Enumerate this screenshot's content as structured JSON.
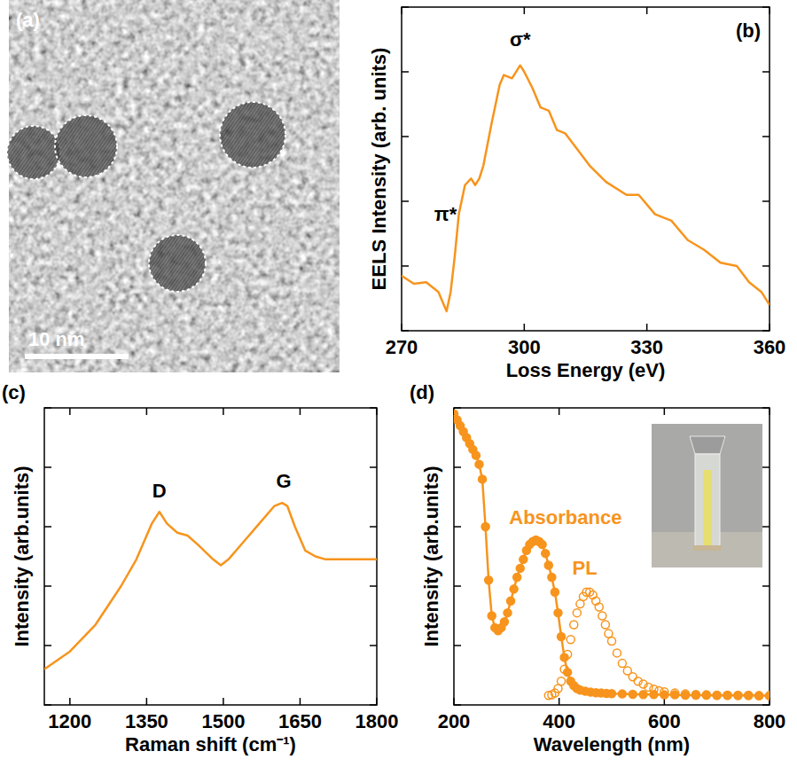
{
  "chart_data": [
    {
      "type": "image",
      "title": "(a)",
      "annotations": [
        {
          "text": "10 nm"
        }
      ]
    },
    {
      "type": "line",
      "title": "(b)",
      "x_label": "Loss Energy (eV)",
      "y_label": "EELS Intensity (arb. units)",
      "x": [
        270,
        273,
        276,
        279,
        281,
        282,
        283,
        284,
        285.5,
        287,
        288,
        289,
        290,
        292,
        294,
        295,
        297,
        299,
        300,
        302,
        304,
        306,
        308,
        310,
        313,
        316,
        320,
        325,
        328,
        332,
        336,
        340,
        344,
        348,
        352,
        355,
        358,
        360
      ],
      "values": [
        17,
        14.5,
        15,
        12,
        6,
        12,
        23,
        36,
        45,
        47,
        45,
        47,
        51,
        64,
        76,
        79,
        78,
        82,
        80,
        75,
        69,
        68,
        62,
        61,
        56,
        51,
        46,
        42,
        42,
        36,
        34,
        28,
        25,
        21,
        20,
        15,
        12,
        8
      ],
      "color": "#f7941d",
      "xlim": [
        270,
        360
      ],
      "xticks": [
        270,
        300,
        330,
        360
      ],
      "ylim": [
        0,
        100
      ],
      "yticks": [
        0,
        20,
        40,
        60,
        80,
        100
      ],
      "tick_labels": "x",
      "annotations": [
        {
          "text": "π*",
          "x": 283.5,
          "y": 34
        },
        {
          "text": "σ*",
          "x": 299,
          "y": 88
        }
      ]
    },
    {
      "type": "line",
      "title": "(c)",
      "x_label": "Raman shift (cm⁻¹)",
      "y_label": "Intensity (arb.units)",
      "x": [
        1150,
        1200,
        1250,
        1300,
        1330,
        1360,
        1375,
        1390,
        1410,
        1430,
        1450,
        1480,
        1495,
        1510,
        1540,
        1570,
        1600,
        1615,
        1625,
        1640,
        1660,
        1680,
        1700,
        1750,
        1800
      ],
      "values": [
        12,
        18,
        27,
        40,
        49,
        61,
        65,
        61,
        58,
        57,
        54,
        49,
        47,
        49,
        55,
        61,
        67,
        68,
        67,
        60,
        52,
        50,
        49,
        49,
        49
      ],
      "color": "#f7941d",
      "xlim": [
        1150,
        1800
      ],
      "xticks": [
        1200,
        1350,
        1500,
        1650,
        1800
      ],
      "ylim": [
        0,
        100
      ],
      "yticks": [
        0,
        20,
        40,
        60,
        80,
        100
      ],
      "tick_labels": "x",
      "annotations": [
        {
          "text": "D",
          "x": 1375,
          "y": 70
        },
        {
          "text": "G",
          "x": 1618,
          "y": 73
        }
      ]
    },
    {
      "type": "line",
      "title": "(d)",
      "x_label": "Wavelength (nm)",
      "y_label": "Intensity (arb.units)",
      "xlim": [
        200,
        800
      ],
      "xticks": [
        200,
        400,
        600,
        800
      ],
      "ylim": [
        0,
        100
      ],
      "yticks": [
        0,
        20,
        40,
        60,
        80,
        100
      ],
      "tick_labels": "x",
      "series": [
        {
          "color": "#f7941d",
          "marker": "circle",
          "line_style": "solid",
          "x": [
            200,
            206,
            212,
            218,
            224,
            230,
            236,
            242,
            248,
            254,
            260,
            266,
            272,
            278,
            284,
            290,
            296,
            302,
            308,
            314,
            320,
            326,
            332,
            338,
            344,
            350,
            356,
            362,
            368,
            374,
            380,
            386,
            392,
            398,
            404,
            410,
            416,
            422,
            428,
            434,
            440,
            450,
            460,
            470,
            480,
            490,
            500,
            520,
            540,
            560,
            580,
            600,
            620,
            640,
            660,
            680,
            700,
            720,
            740,
            760,
            780,
            800
          ],
          "values": [
            98,
            96,
            94,
            92,
            90,
            88,
            86,
            84,
            81,
            76,
            60,
            42,
            30,
            26,
            25,
            26,
            28,
            31,
            35,
            39,
            43,
            46,
            49,
            52,
            54,
            55,
            55.5,
            55,
            54,
            51,
            47,
            43,
            38,
            31,
            23,
            16,
            11,
            8,
            6.5,
            5.5,
            5,
            4.6,
            4.3,
            4.1,
            4,
            3.9,
            3.8,
            3.7,
            3.6,
            3.5,
            3.5,
            3.4,
            3.4,
            3.3,
            3.3,
            3.3,
            3.2,
            3.2,
            3.2,
            3.2,
            3.1,
            3.1
          ]
        },
        {
          "color": "#f7941d",
          "marker": "open_circle",
          "line_style": "none",
          "x": [
            380,
            386,
            392,
            398,
            404,
            410,
            416,
            422,
            428,
            434,
            440,
            446,
            452,
            458,
            464,
            470,
            476,
            482,
            488,
            494,
            500,
            510,
            520,
            530,
            540,
            550,
            560,
            570,
            580,
            590,
            600,
            620,
            640,
            660,
            680,
            700,
            720,
            740,
            760,
            780,
            800
          ],
          "values": [
            3.2,
            3.4,
            4,
            5.5,
            8,
            12,
            17,
            22,
            27,
            31,
            34,
            36.5,
            38,
            38,
            37,
            35,
            33,
            30,
            27,
            24,
            21.5,
            17.5,
            14,
            11.5,
            9.5,
            8,
            7,
            6,
            5.3,
            4.8,
            4.4,
            4,
            3.7,
            3.5,
            3.4,
            3.3,
            3.3,
            3.2,
            3.2,
            3.1,
            3.1
          ]
        }
      ],
      "annotations": [
        {
          "text": "Absorbance",
          "x": 305,
          "y": 61
        },
        {
          "text": "PL",
          "x": 425,
          "y": 44
        }
      ]
    }
  ]
}
